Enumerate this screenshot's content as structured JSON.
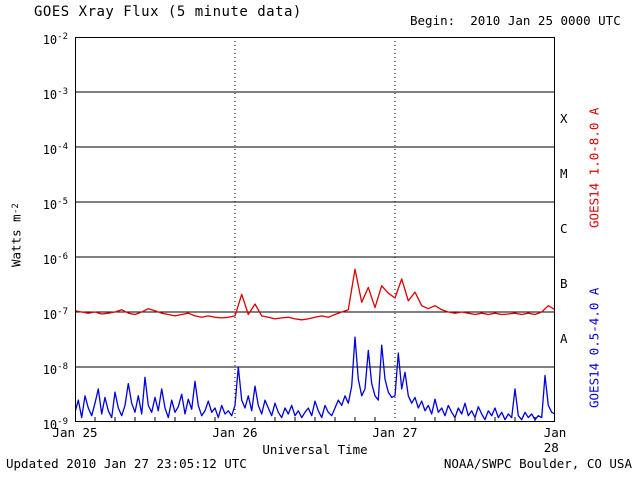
{
  "title": "GOES Xray Flux (5 minute data)",
  "begin_label": "Begin:  2010 Jan 25 0000 UTC",
  "footer": {
    "updated": "Updated 2010 Jan 27 23:05:12 UTC",
    "source": "NOAA/SWPC Boulder, CO USA"
  },
  "axes": {
    "ylabel_main": "Watts m",
    "ylabel_sup": "-2",
    "xlabel": "Universal Time",
    "x_ticks": [
      "Jan 25",
      "Jan 26",
      "Jan 27",
      "Jan 28"
    ],
    "y_tick_exponents": [
      -2,
      -3,
      -4,
      -5,
      -6,
      -7,
      -8,
      -9
    ]
  },
  "flare_classes": [
    "X",
    "M",
    "C",
    "B",
    "A"
  ],
  "right_labels": {
    "red": "GOES14 1.0-8.0 A",
    "blue": "GOES14 0.5-4.0 A"
  },
  "colors": {
    "red": "#dd0000",
    "blue": "#0000dd",
    "grid": "#000000"
  },
  "chart_data": {
    "type": "line",
    "title": "GOES Xray Flux (5 minute data)",
    "xlabel": "Universal Time",
    "ylabel": "Watts m^-2",
    "x_unit": "hours since 2010 Jan 25 0000 UTC",
    "x_range_hours": [
      0,
      72
    ],
    "y_scale": "log10",
    "y_range": [
      1e-09,
      0.01
    ],
    "grid": true,
    "day_boundaries_hours": [
      24,
      48
    ],
    "series": [
      {
        "name": "GOES14 1.0-8.0 A",
        "color": "#dd0000",
        "x_start_hours": 0,
        "x_step_hours": 1,
        "values": [
          1.05e-07,
          1e-07,
          9.5e-08,
          1e-07,
          9.2e-08,
          9.5e-08,
          1e-07,
          1.1e-07,
          9.5e-08,
          9e-08,
          1e-07,
          1.15e-07,
          1.05e-07,
          9.5e-08,
          9e-08,
          8.5e-08,
          9e-08,
          9.5e-08,
          8.5e-08,
          8e-08,
          8.5e-08,
          8e-08,
          7.8e-08,
          8e-08,
          8.5e-08,
          2.1e-07,
          9e-08,
          1.4e-07,
          8.5e-08,
          8e-08,
          7.5e-08,
          7.8e-08,
          8e-08,
          7.5e-08,
          7.2e-08,
          7.5e-08,
          8e-08,
          8.5e-08,
          8e-08,
          9e-08,
          1e-07,
          1.1e-07,
          6e-07,
          1.5e-07,
          2.8e-07,
          1.2e-07,
          3e-07,
          2.2e-07,
          1.8e-07,
          4e-07,
          1.6e-07,
          2.3e-07,
          1.3e-07,
          1.15e-07,
          1.3e-07,
          1.1e-07,
          1e-07,
          9.5e-08,
          1e-07,
          9.5e-08,
          9e-08,
          9.5e-08,
          9e-08,
          9.5e-08,
          9e-08,
          9.2e-08,
          9.5e-08,
          9e-08,
          9.5e-08,
          9e-08,
          1e-07,
          1.3e-07,
          1.1e-07
        ]
      },
      {
        "name": "GOES14 0.5-4.0 A",
        "color": "#0000dd",
        "x_start_hours": 0,
        "x_step_hours": 0.5,
        "values": [
          1.5e-09,
          2.5e-09,
          1.2e-09,
          3e-09,
          1.8e-09,
          1.3e-09,
          2.2e-09,
          4e-09,
          1.4e-09,
          2.8e-09,
          1.6e-09,
          1.2e-09,
          3.5e-09,
          1.8e-09,
          1.3e-09,
          2e-09,
          5e-09,
          2.2e-09,
          1.5e-09,
          3e-09,
          1.4e-09,
          6.5e-09,
          2e-09,
          1.5e-09,
          2.8e-09,
          1.6e-09,
          4e-09,
          1.8e-09,
          1.2e-09,
          2.5e-09,
          1.5e-09,
          1.9e-09,
          3.2e-09,
          1.4e-09,
          2.6e-09,
          1.7e-09,
          5.5e-09,
          2e-09,
          1.3e-09,
          1.6e-09,
          2.4e-09,
          1.5e-09,
          1.8e-09,
          1.2e-09,
          2e-09,
          1.4e-09,
          1.6e-09,
          1.3e-09,
          2e-09,
          1e-08,
          2.5e-09,
          1.8e-09,
          3e-09,
          1.6e-09,
          4.5e-09,
          2e-09,
          1.4e-09,
          2.5e-09,
          1.8e-09,
          1.3e-09,
          2.2e-09,
          1.5e-09,
          1.2e-09,
          1.8e-09,
          1.4e-09,
          2e-09,
          1.3e-09,
          1.6e-09,
          1.2e-09,
          1.5e-09,
          1.8e-09,
          1.3e-09,
          2.4e-09,
          1.6e-09,
          1.2e-09,
          2e-09,
          1.5e-09,
          1.3e-09,
          1.8e-09,
          2.5e-09,
          2e-09,
          3e-09,
          2.2e-09,
          4.5e-09,
          3.5e-08,
          6e-09,
          3e-09,
          4e-09,
          2e-08,
          5e-09,
          3e-09,
          2.5e-09,
          2.5e-08,
          6e-09,
          3.5e-09,
          2.8e-09,
          3e-09,
          1.8e-08,
          4e-09,
          8e-09,
          3e-09,
          2.2e-09,
          2.8e-09,
          1.8e-09,
          2.4e-09,
          1.6e-09,
          2e-09,
          1.4e-09,
          2.6e-09,
          1.5e-09,
          1.8e-09,
          1.3e-09,
          2e-09,
          1.5e-09,
          1.2e-09,
          1.8e-09,
          1.4e-09,
          2.2e-09,
          1.3e-09,
          1.6e-09,
          1.2e-09,
          1.9e-09,
          1.4e-09,
          1.1e-09,
          1.6e-09,
          1.3e-09,
          1.8e-09,
          1.2e-09,
          1.5e-09,
          1.1e-09,
          1.4e-09,
          1.2e-09,
          4e-09,
          1.3e-09,
          1.1e-09,
          1.5e-09,
          1.2e-09,
          1.4e-09,
          1.1e-09,
          1.3e-09,
          1.2e-09,
          7e-09,
          2e-09,
          1.5e-09,
          1.4e-09
        ]
      }
    ]
  }
}
